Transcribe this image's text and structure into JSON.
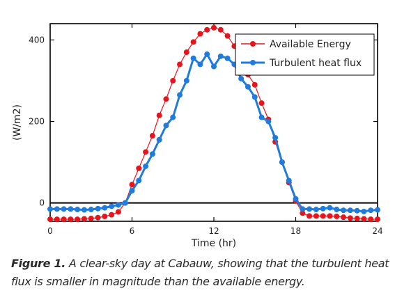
{
  "chart_data": {
    "type": "line",
    "xlabel": "Time (hr)",
    "ylabel": "(W/m2)",
    "xlim": [
      0,
      24
    ],
    "ylim": [
      -45,
      440
    ],
    "xticks": [
      0,
      6,
      12,
      18,
      24
    ],
    "yticks": [
      0,
      200,
      400
    ],
    "zero_line": true,
    "grid": false,
    "legend": "top-right",
    "x": [
      0,
      0.5,
      1,
      1.5,
      2,
      2.5,
      3,
      3.5,
      4,
      4.5,
      5,
      5.5,
      6,
      6.5,
      7,
      7.5,
      8,
      8.5,
      9,
      9.5,
      10,
      10.5,
      11,
      11.5,
      12,
      12.5,
      13,
      13.5,
      14,
      14.5,
      15,
      15.5,
      16,
      16.5,
      17,
      17.5,
      18,
      18.5,
      19,
      19.5,
      20,
      20.5,
      21,
      21.5,
      22,
      22.5,
      23,
      23.5,
      24
    ],
    "series": [
      {
        "name": "Available Energy",
        "color": "#e8141c",
        "marker": "circle",
        "values": [
          -40,
          -40,
          -40,
          -40,
          -40,
          -39,
          -38,
          -36,
          -33,
          -29,
          -22,
          0,
          45,
          85,
          125,
          165,
          215,
          255,
          300,
          340,
          370,
          395,
          415,
          425,
          430,
          425,
          410,
          385,
          350,
          315,
          290,
          245,
          205,
          150,
          100,
          50,
          5,
          -25,
          -32,
          -32,
          -32,
          -32,
          -33,
          -35,
          -37,
          -38,
          -39,
          -40,
          -40
        ]
      },
      {
        "name": "Turbulent heat flux",
        "color": "#1f7bdc",
        "marker": "circle",
        "values": [
          -15,
          -15,
          -15,
          -15,
          -16,
          -17,
          -16,
          -14,
          -12,
          -8,
          -5,
          0,
          30,
          55,
          90,
          120,
          155,
          190,
          210,
          265,
          300,
          355,
          340,
          365,
          335,
          360,
          355,
          340,
          305,
          285,
          260,
          210,
          200,
          160,
          100,
          55,
          10,
          -15,
          -15,
          -16,
          -14,
          -12,
          -16,
          -18,
          -18,
          -19,
          -21,
          -18,
          -17
        ]
      }
    ]
  },
  "caption": {
    "label": "Figure 1.",
    "text": "A clear-sky day at Cabauw, showing that the turbulent heat flux is smaller in magnitude than the available energy."
  }
}
